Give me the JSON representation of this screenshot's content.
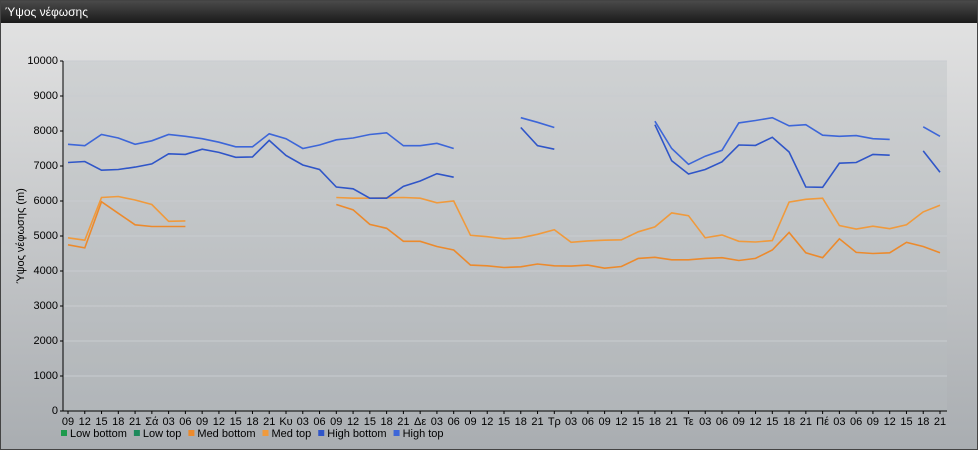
{
  "window_title": "Ύψος νέφωσης",
  "chart_data": {
    "type": "line",
    "y_label": "Ύψος νέφωσης (m)",
    "categories": [
      "09",
      "12",
      "15",
      "18",
      "21",
      "Σά",
      "03",
      "06",
      "09",
      "12",
      "15",
      "18",
      "21",
      "Κυ",
      "03",
      "06",
      "09",
      "12",
      "15",
      "18",
      "21",
      "Δε",
      "03",
      "06",
      "09",
      "12",
      "15",
      "18",
      "21",
      "Τρ",
      "03",
      "06",
      "09",
      "12",
      "15",
      "18",
      "21",
      "Τε",
      "03",
      "06",
      "09",
      "12",
      "15",
      "18",
      "21",
      "Πέ",
      "03",
      "06",
      "09",
      "12",
      "15",
      "18",
      "21"
    ],
    "ylim": [
      0,
      10000
    ],
    "yticks": [
      0,
      1000,
      2000,
      3000,
      4000,
      5000,
      6000,
      7000,
      8000,
      9000,
      10000
    ],
    "grid": true,
    "series": [
      {
        "name": "Low bottom",
        "color": "#1e9a4c",
        "values": [
          null,
          null,
          null,
          null,
          null,
          null,
          null,
          null,
          null,
          null,
          null,
          null,
          null,
          null,
          null,
          null,
          null,
          null,
          null,
          null,
          null,
          null,
          null,
          null,
          null,
          null,
          null,
          null,
          null,
          null,
          null,
          null,
          null,
          null,
          null,
          null,
          null,
          null,
          null,
          null,
          null,
          null,
          null,
          null,
          null,
          null,
          null,
          null,
          null,
          null,
          null,
          null,
          null
        ]
      },
      {
        "name": "Low top",
        "color": "#1e8a5c",
        "values": [
          null,
          null,
          null,
          null,
          null,
          null,
          null,
          null,
          null,
          null,
          null,
          null,
          null,
          null,
          null,
          null,
          null,
          null,
          null,
          null,
          null,
          null,
          null,
          null,
          null,
          null,
          null,
          null,
          null,
          null,
          null,
          null,
          null,
          null,
          null,
          null,
          null,
          null,
          null,
          null,
          null,
          null,
          null,
          null,
          null,
          null,
          null,
          null,
          null,
          null,
          null,
          null,
          null
        ]
      },
      {
        "name": "Med bottom",
        "color": "#ec8a2c",
        "values": [
          4750,
          4660,
          5980,
          5650,
          5320,
          5270,
          5270,
          5270,
          null,
          null,
          null,
          null,
          null,
          null,
          null,
          null,
          5900,
          5750,
          5330,
          5220,
          4850,
          4850,
          4700,
          4600,
          4170,
          4150,
          4100,
          4120,
          4200,
          4150,
          4140,
          4170,
          4080,
          4130,
          4360,
          4390,
          4320,
          4320,
          4360,
          4380,
          4300,
          4360,
          4600,
          5100,
          4520,
          4380,
          4920,
          4530,
          4500,
          4520,
          4820,
          4700,
          4520
        ]
      },
      {
        "name": "Med top",
        "color": "#f09a3c",
        "values": [
          4950,
          4880,
          6100,
          6130,
          6030,
          5900,
          5420,
          5430,
          null,
          null,
          null,
          null,
          null,
          null,
          null,
          null,
          6100,
          6080,
          6080,
          6090,
          6100,
          6080,
          5950,
          6000,
          5020,
          4980,
          4920,
          4950,
          5050,
          5180,
          4820,
          4860,
          4880,
          4890,
          5120,
          5260,
          5660,
          5580,
          4950,
          5030,
          4850,
          4830,
          4870,
          5970,
          6050,
          6080,
          5300,
          5200,
          5280,
          5210,
          5320,
          5690,
          5880
        ]
      },
      {
        "name": "High bottom",
        "color": "#2f55c8",
        "values": [
          7100,
          7130,
          6880,
          6900,
          6970,
          7060,
          7350,
          7330,
          7480,
          7390,
          7250,
          7260,
          7730,
          7300,
          7030,
          6900,
          6400,
          6350,
          6080,
          6080,
          6420,
          6570,
          6780,
          6680,
          null,
          null,
          null,
          8100,
          7580,
          7480,
          null,
          null,
          null,
          null,
          null,
          8180,
          7150,
          6770,
          6900,
          7120,
          7600,
          7590,
          7820,
          7400,
          6400,
          6390,
          7080,
          7100,
          7330,
          7310,
          null,
          7430,
          6820
        ]
      },
      {
        "name": "High top",
        "color": "#3d66d8",
        "values": [
          7620,
          7580,
          7900,
          7800,
          7620,
          7720,
          7900,
          7850,
          7780,
          7680,
          7550,
          7550,
          7920,
          7780,
          7500,
          7600,
          7750,
          7800,
          7900,
          7950,
          7580,
          7580,
          7650,
          7500,
          null,
          null,
          null,
          8380,
          8250,
          8100,
          null,
          null,
          null,
          null,
          null,
          8280,
          7500,
          7050,
          7280,
          7450,
          8230,
          8300,
          8380,
          8150,
          8180,
          7880,
          7850,
          7870,
          7780,
          7760,
          null,
          8120,
          7850
        ]
      }
    ]
  }
}
